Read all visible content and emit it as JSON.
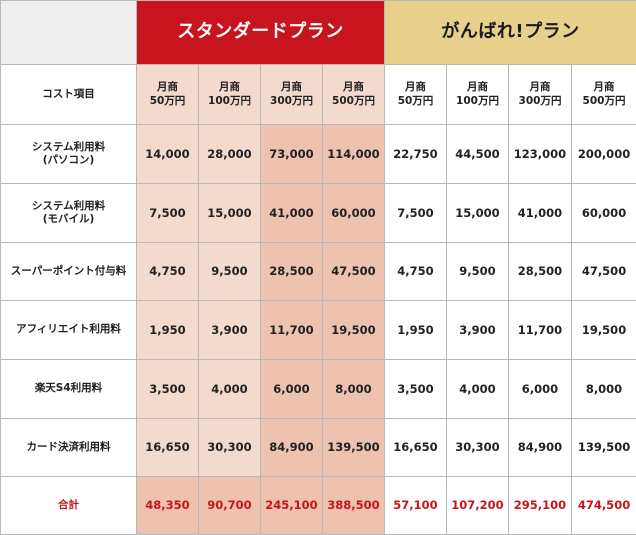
{
  "header": {
    "standard_plan": "スタンダードプラン",
    "ganbare_plan": "がんばれ!プラン"
  },
  "columns": {
    "item_label": "コスト項目",
    "standard": [
      {
        "line1": "月商",
        "line2": "50万円"
      },
      {
        "line1": "月商",
        "line2": "100万円"
      },
      {
        "line1": "月商",
        "line2": "300万円"
      },
      {
        "line1": "月商",
        "line2": "500万円"
      }
    ],
    "ganbare": [
      {
        "line1": "月商",
        "line2": "50万円"
      },
      {
        "line1": "月商",
        "line2": "100万円"
      },
      {
        "line1": "月商",
        "line2": "300万円"
      },
      {
        "line1": "月商",
        "line2": "500万円"
      }
    ]
  },
  "rows": [
    {
      "label1": "システム利用料",
      "label2": "(パソコン)",
      "values": [
        "14,000",
        "28,000",
        "73,000",
        "114,000",
        "22,750",
        "44,500",
        "123,000",
        "200,000"
      ]
    },
    {
      "label1": "システム利用料",
      "label2": "(モバイル)",
      "values": [
        "7,500",
        "15,000",
        "41,000",
        "60,000",
        "7,500",
        "15,000",
        "41,000",
        "60,000"
      ]
    },
    {
      "label1": "スーパーポイント付与料",
      "label2": "",
      "values": [
        "4,750",
        "9,500",
        "28,500",
        "47,500",
        "4,750",
        "9,500",
        "28,500",
        "47,500"
      ]
    },
    {
      "label1": "アフィリエイト利用料",
      "label2": "",
      "values": [
        "1,950",
        "3,900",
        "11,700",
        "19,500",
        "1,950",
        "3,900",
        "11,700",
        "19,500"
      ]
    },
    {
      "label1": "楽天S4利用料",
      "label2": "",
      "values": [
        "3,500",
        "4,000",
        "6,000",
        "8,000",
        "3,500",
        "4,000",
        "6,000",
        "8,000"
      ]
    },
    {
      "label1": "カード決済利用料",
      "label2": "",
      "values": [
        "16,650",
        "30,300",
        "84,900",
        "139,500",
        "16,650",
        "30,300",
        "84,900",
        "139,500"
      ]
    }
  ],
  "total": {
    "label": "合計",
    "values": [
      "48,350",
      "90,700",
      "245,100",
      "388,500",
      "57,100",
      "107,200",
      "295,100",
      "474,500"
    ]
  },
  "colors": {
    "standard_header": "#c8151d",
    "ganbare_header": "#e9cf8c",
    "standard_cell_light": "#f4d9cd",
    "standard_cell_dark": "#edc2ae",
    "total_text": "#c8151d"
  }
}
